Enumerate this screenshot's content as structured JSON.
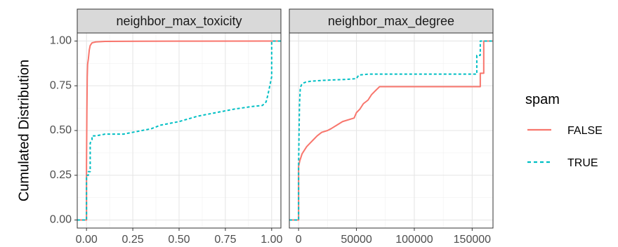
{
  "chart_data": {
    "type": "line",
    "ylabel": "Cumulated Distribution",
    "xlabel": "",
    "ylim": [
      -0.045,
      1.045
    ],
    "y_ticks": [
      0.0,
      0.25,
      0.5,
      0.75,
      1.0
    ],
    "y_tick_labels": [
      "0.00",
      "0.25",
      "0.50",
      "0.75",
      "1.00"
    ],
    "grid": true,
    "legend": {
      "title": "spam",
      "placement": "right",
      "entries": [
        {
          "label": "FALSE",
          "color": "#F8766D",
          "dash": "solid"
        },
        {
          "label": "TRUE",
          "color": "#00BFC4",
          "dash": "dashed"
        }
      ]
    },
    "panels": [
      {
        "strip": "neighbor_max_toxicity",
        "xlim": [
          -0.05,
          1.05
        ],
        "x_ticks": [
          0.0,
          0.25,
          0.5,
          0.75,
          1.0
        ],
        "x_tick_labels": [
          "0.00",
          "0.25",
          "0.50",
          "0.75",
          "1.00"
        ],
        "series": [
          {
            "name": "FALSE",
            "x": [
              -0.05,
              0.0,
              0.0,
              0.002,
              0.004,
              0.006,
              0.01,
              0.015,
              0.02,
              0.03,
              0.05,
              0.1,
              0.3,
              0.6,
              1.0,
              1.05
            ],
            "y": [
              0.0,
              0.0,
              0.3,
              0.6,
              0.8,
              0.87,
              0.9,
              0.95,
              0.975,
              0.99,
              0.995,
              0.998,
              0.999,
              0.9995,
              1.0,
              1.0
            ]
          },
          {
            "name": "TRUE",
            "x": [
              -0.05,
              0.0,
              0.0,
              0.01,
              0.01,
              0.02,
              0.02,
              0.03,
              0.03,
              0.05,
              0.1,
              0.2,
              0.3,
              0.35,
              0.4,
              0.5,
              0.6,
              0.7,
              0.8,
              0.9,
              0.95,
              0.97,
              0.98,
              0.99,
              1.0,
              1.0,
              1.05
            ],
            "y": [
              0.0,
              0.0,
              0.25,
              0.25,
              0.27,
              0.27,
              0.43,
              0.45,
              0.47,
              0.47,
              0.48,
              0.48,
              0.5,
              0.51,
              0.53,
              0.55,
              0.58,
              0.6,
              0.62,
              0.635,
              0.64,
              0.66,
              0.7,
              0.75,
              0.8,
              1.0,
              1.0
            ]
          }
        ]
      },
      {
        "strip": "neighbor_max_degree",
        "xlim": [
          -8000,
          168000
        ],
        "x_ticks": [
          0,
          50000,
          100000,
          150000
        ],
        "x_tick_labels": [
          "0",
          "50000",
          "100000",
          "150000"
        ],
        "series": [
          {
            "name": "FALSE",
            "x": [
              -8000,
              0,
              0,
              1000,
              2000,
              3000,
              5000,
              7000,
              10000,
              13000,
              16000,
              18000,
              20000,
              25000,
              28000,
              33000,
              38000,
              48000,
              50000,
              53000,
              56000,
              60000,
              63000,
              66000,
              70000,
              100000,
              130000,
              155000,
              157000,
              157000,
              160000,
              160000,
              168000
            ],
            "y": [
              0.0,
              0.0,
              0.3,
              0.33,
              0.35,
              0.37,
              0.39,
              0.41,
              0.43,
              0.45,
              0.47,
              0.48,
              0.49,
              0.5,
              0.51,
              0.53,
              0.55,
              0.57,
              0.6,
              0.62,
              0.65,
              0.67,
              0.7,
              0.72,
              0.745,
              0.745,
              0.745,
              0.745,
              0.745,
              0.82,
              0.82,
              1.0,
              1.0
            ]
          },
          {
            "name": "TRUE",
            "x": [
              -8000,
              0,
              0,
              400,
              800,
              1500,
              2500,
              4000,
              6000,
              10000,
              20000,
              30000,
              40000,
              50000,
              52000,
              60000,
              80000,
              100000,
              120000,
              140000,
              154000,
              154000,
              157000,
              157000,
              168000
            ],
            "y": [
              0.0,
              0.0,
              0.3,
              0.5,
              0.65,
              0.74,
              0.755,
              0.765,
              0.77,
              0.775,
              0.78,
              0.783,
              0.785,
              0.79,
              0.81,
              0.815,
              0.815,
              0.815,
              0.815,
              0.815,
              0.815,
              0.92,
              0.92,
              1.0,
              1.0
            ]
          }
        ]
      }
    ]
  }
}
